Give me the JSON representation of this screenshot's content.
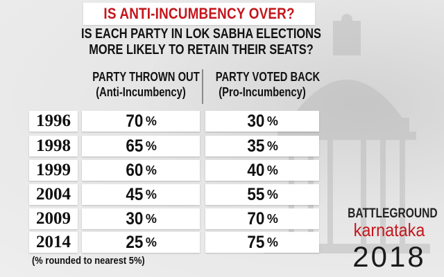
{
  "title": "IS ANTI-INCUMBENCY OVER?",
  "subtitle_line1": "IS EACH PARTY IN LOK SABHA ELECTIONS",
  "subtitle_line2": "MORE LIKELY TO RETAIN THEIR SEATS?",
  "columns": [
    {
      "heading": "PARTY THROWN OUT",
      "subheading": "(Anti-Incumbency)"
    },
    {
      "heading": "PARTY VOTED BACK",
      "subheading": "(Pro-Incumbency)"
    }
  ],
  "percent_sign": "%",
  "rows": [
    {
      "year": "1996",
      "anti": "70",
      "pro": "30"
    },
    {
      "year": "1998",
      "anti": "65",
      "pro": "35"
    },
    {
      "year": "1999",
      "anti": "60",
      "pro": "40"
    },
    {
      "year": "2004",
      "anti": "45",
      "pro": "55"
    },
    {
      "year": "2009",
      "anti": "30",
      "pro": "70"
    },
    {
      "year": "2014",
      "anti": "25",
      "pro": "75"
    }
  ],
  "footnote": "(% rounded to nearest 5%)",
  "brand": {
    "line1": "BATTLEGROUND",
    "line2": "karnataka",
    "line3": "2018"
  },
  "colors": {
    "title_red": "#c4161c",
    "brand_red": "#c4161c",
    "background": "#e9e9e9",
    "box": "#ffffff"
  },
  "chart_data": {
    "type": "table",
    "title": "IS ANTI-INCUMBENCY OVER?",
    "columns": [
      "PARTY THROWN OUT (Anti-Incumbency)",
      "PARTY VOTED BACK (Pro-Incumbency)"
    ],
    "categories": [
      "1996",
      "1998",
      "1999",
      "2004",
      "2009",
      "2014"
    ],
    "series": [
      {
        "name": "PARTY THROWN OUT",
        "values": [
          70,
          65,
          60,
          45,
          30,
          25
        ]
      },
      {
        "name": "PARTY VOTED BACK",
        "values": [
          30,
          35,
          40,
          55,
          70,
          75
        ]
      }
    ]
  }
}
